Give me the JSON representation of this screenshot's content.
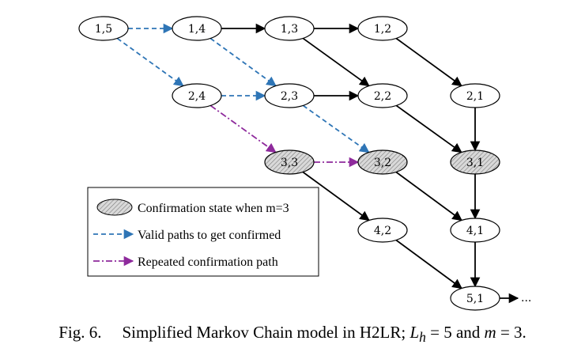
{
  "diagram": {
    "states": [
      {
        "id": "s15",
        "label": "1,5",
        "confirmation": false
      },
      {
        "id": "s14",
        "label": "1,4",
        "confirmation": false
      },
      {
        "id": "s13",
        "label": "1,3",
        "confirmation": false
      },
      {
        "id": "s12",
        "label": "1,2",
        "confirmation": false
      },
      {
        "id": "s24",
        "label": "2,4",
        "confirmation": false
      },
      {
        "id": "s23",
        "label": "2,3",
        "confirmation": false
      },
      {
        "id": "s22",
        "label": "2,2",
        "confirmation": false
      },
      {
        "id": "s21",
        "label": "2,1",
        "confirmation": false
      },
      {
        "id": "s33",
        "label": "3,3",
        "confirmation": true
      },
      {
        "id": "s32",
        "label": "3,2",
        "confirmation": true
      },
      {
        "id": "s31",
        "label": "3,1",
        "confirmation": true
      },
      {
        "id": "s42",
        "label": "4,2",
        "confirmation": false
      },
      {
        "id": "s41",
        "label": "4,1",
        "confirmation": false
      },
      {
        "id": "s51",
        "label": "5,1",
        "confirmation": false
      }
    ],
    "transitions": [
      {
        "from": "s15",
        "to": "s14",
        "style": "valid"
      },
      {
        "from": "s15",
        "to": "s24",
        "style": "valid"
      },
      {
        "from": "s14",
        "to": "s13",
        "style": "normal"
      },
      {
        "from": "s14",
        "to": "s23",
        "style": "valid"
      },
      {
        "from": "s13",
        "to": "s12",
        "style": "normal"
      },
      {
        "from": "s13",
        "to": "s22",
        "style": "normal"
      },
      {
        "from": "s12",
        "to": "s21",
        "style": "normal"
      },
      {
        "from": "s24",
        "to": "s23",
        "style": "valid"
      },
      {
        "from": "s24",
        "to": "s33",
        "style": "repeated"
      },
      {
        "from": "s23",
        "to": "s22",
        "style": "normal"
      },
      {
        "from": "s23",
        "to": "s32",
        "style": "valid"
      },
      {
        "from": "s22",
        "to": "s31",
        "style": "normal"
      },
      {
        "from": "s21",
        "to": "s31",
        "style": "normal"
      },
      {
        "from": "s33",
        "to": "s32",
        "style": "repeated"
      },
      {
        "from": "s33",
        "to": "s42",
        "style": "normal"
      },
      {
        "from": "s32",
        "to": "s41",
        "style": "normal"
      },
      {
        "from": "s31",
        "to": "s41",
        "style": "normal"
      },
      {
        "from": "s42",
        "to": "s51",
        "style": "normal"
      },
      {
        "from": "s41",
        "to": "s51",
        "style": "normal"
      },
      {
        "from": "s51",
        "to": "continuation",
        "style": "normal"
      }
    ],
    "continuation_label": "...",
    "colors": {
      "normal": "#000000",
      "valid": "#2e75b6",
      "repeated": "#8e2a9c",
      "hatch": "#7a7a7a",
      "hatch_bg": "#d9d9d9"
    }
  },
  "legend": {
    "confirmation_label": "Confirmation state when m=3",
    "valid_label": "Valid paths to get confirmed",
    "repeated_label": "Repeated confirmation path"
  },
  "caption": {
    "fig_label": "Fig. 6.",
    "text_main": "Simplified Markov Chain model in H2LR; ",
    "L": "L",
    "h": "h",
    "eq1": " = 5 and ",
    "m": "m",
    "eq2": " = 3."
  }
}
